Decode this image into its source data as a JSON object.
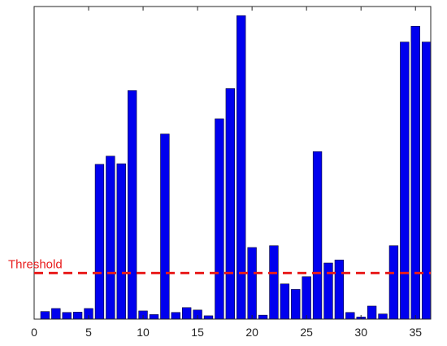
{
  "chart_data": {
    "type": "bar",
    "title": "",
    "xlabel": "",
    "ylabel": "",
    "x": [
      1,
      2,
      3,
      4,
      5,
      6,
      7,
      8,
      9,
      10,
      11,
      12,
      13,
      14,
      15,
      16,
      17,
      18,
      19,
      20,
      21,
      22,
      23,
      24,
      25,
      26,
      27,
      28,
      29,
      30,
      31,
      32,
      33,
      34,
      35,
      36
    ],
    "values": [
      0.025,
      0.035,
      0.022,
      0.023,
      0.035,
      0.51,
      0.537,
      0.512,
      0.753,
      0.027,
      0.015,
      0.61,
      0.022,
      0.038,
      0.03,
      0.011,
      0.66,
      0.76,
      1.0,
      0.236,
      0.013,
      0.242,
      0.116,
      0.098,
      0.14,
      0.552,
      0.185,
      0.195,
      0.022,
      0.007,
      0.043,
      0.017,
      0.242,
      0.913,
      0.965,
      0.913
    ],
    "xlim": [
      0,
      36.4
    ],
    "ylim": [
      0,
      1.03
    ],
    "xticks": [
      0,
      5,
      10,
      15,
      20,
      25,
      30,
      35
    ],
    "xtick_labels": [
      "0",
      "5",
      "10",
      "15",
      "20",
      "25",
      "30",
      "35"
    ],
    "show_yticks": false,
    "grid": false,
    "bar_color": "#0000ee",
    "threshold": {
      "label": "Threshold",
      "value": 0.152,
      "color": "#e81c1c"
    }
  }
}
